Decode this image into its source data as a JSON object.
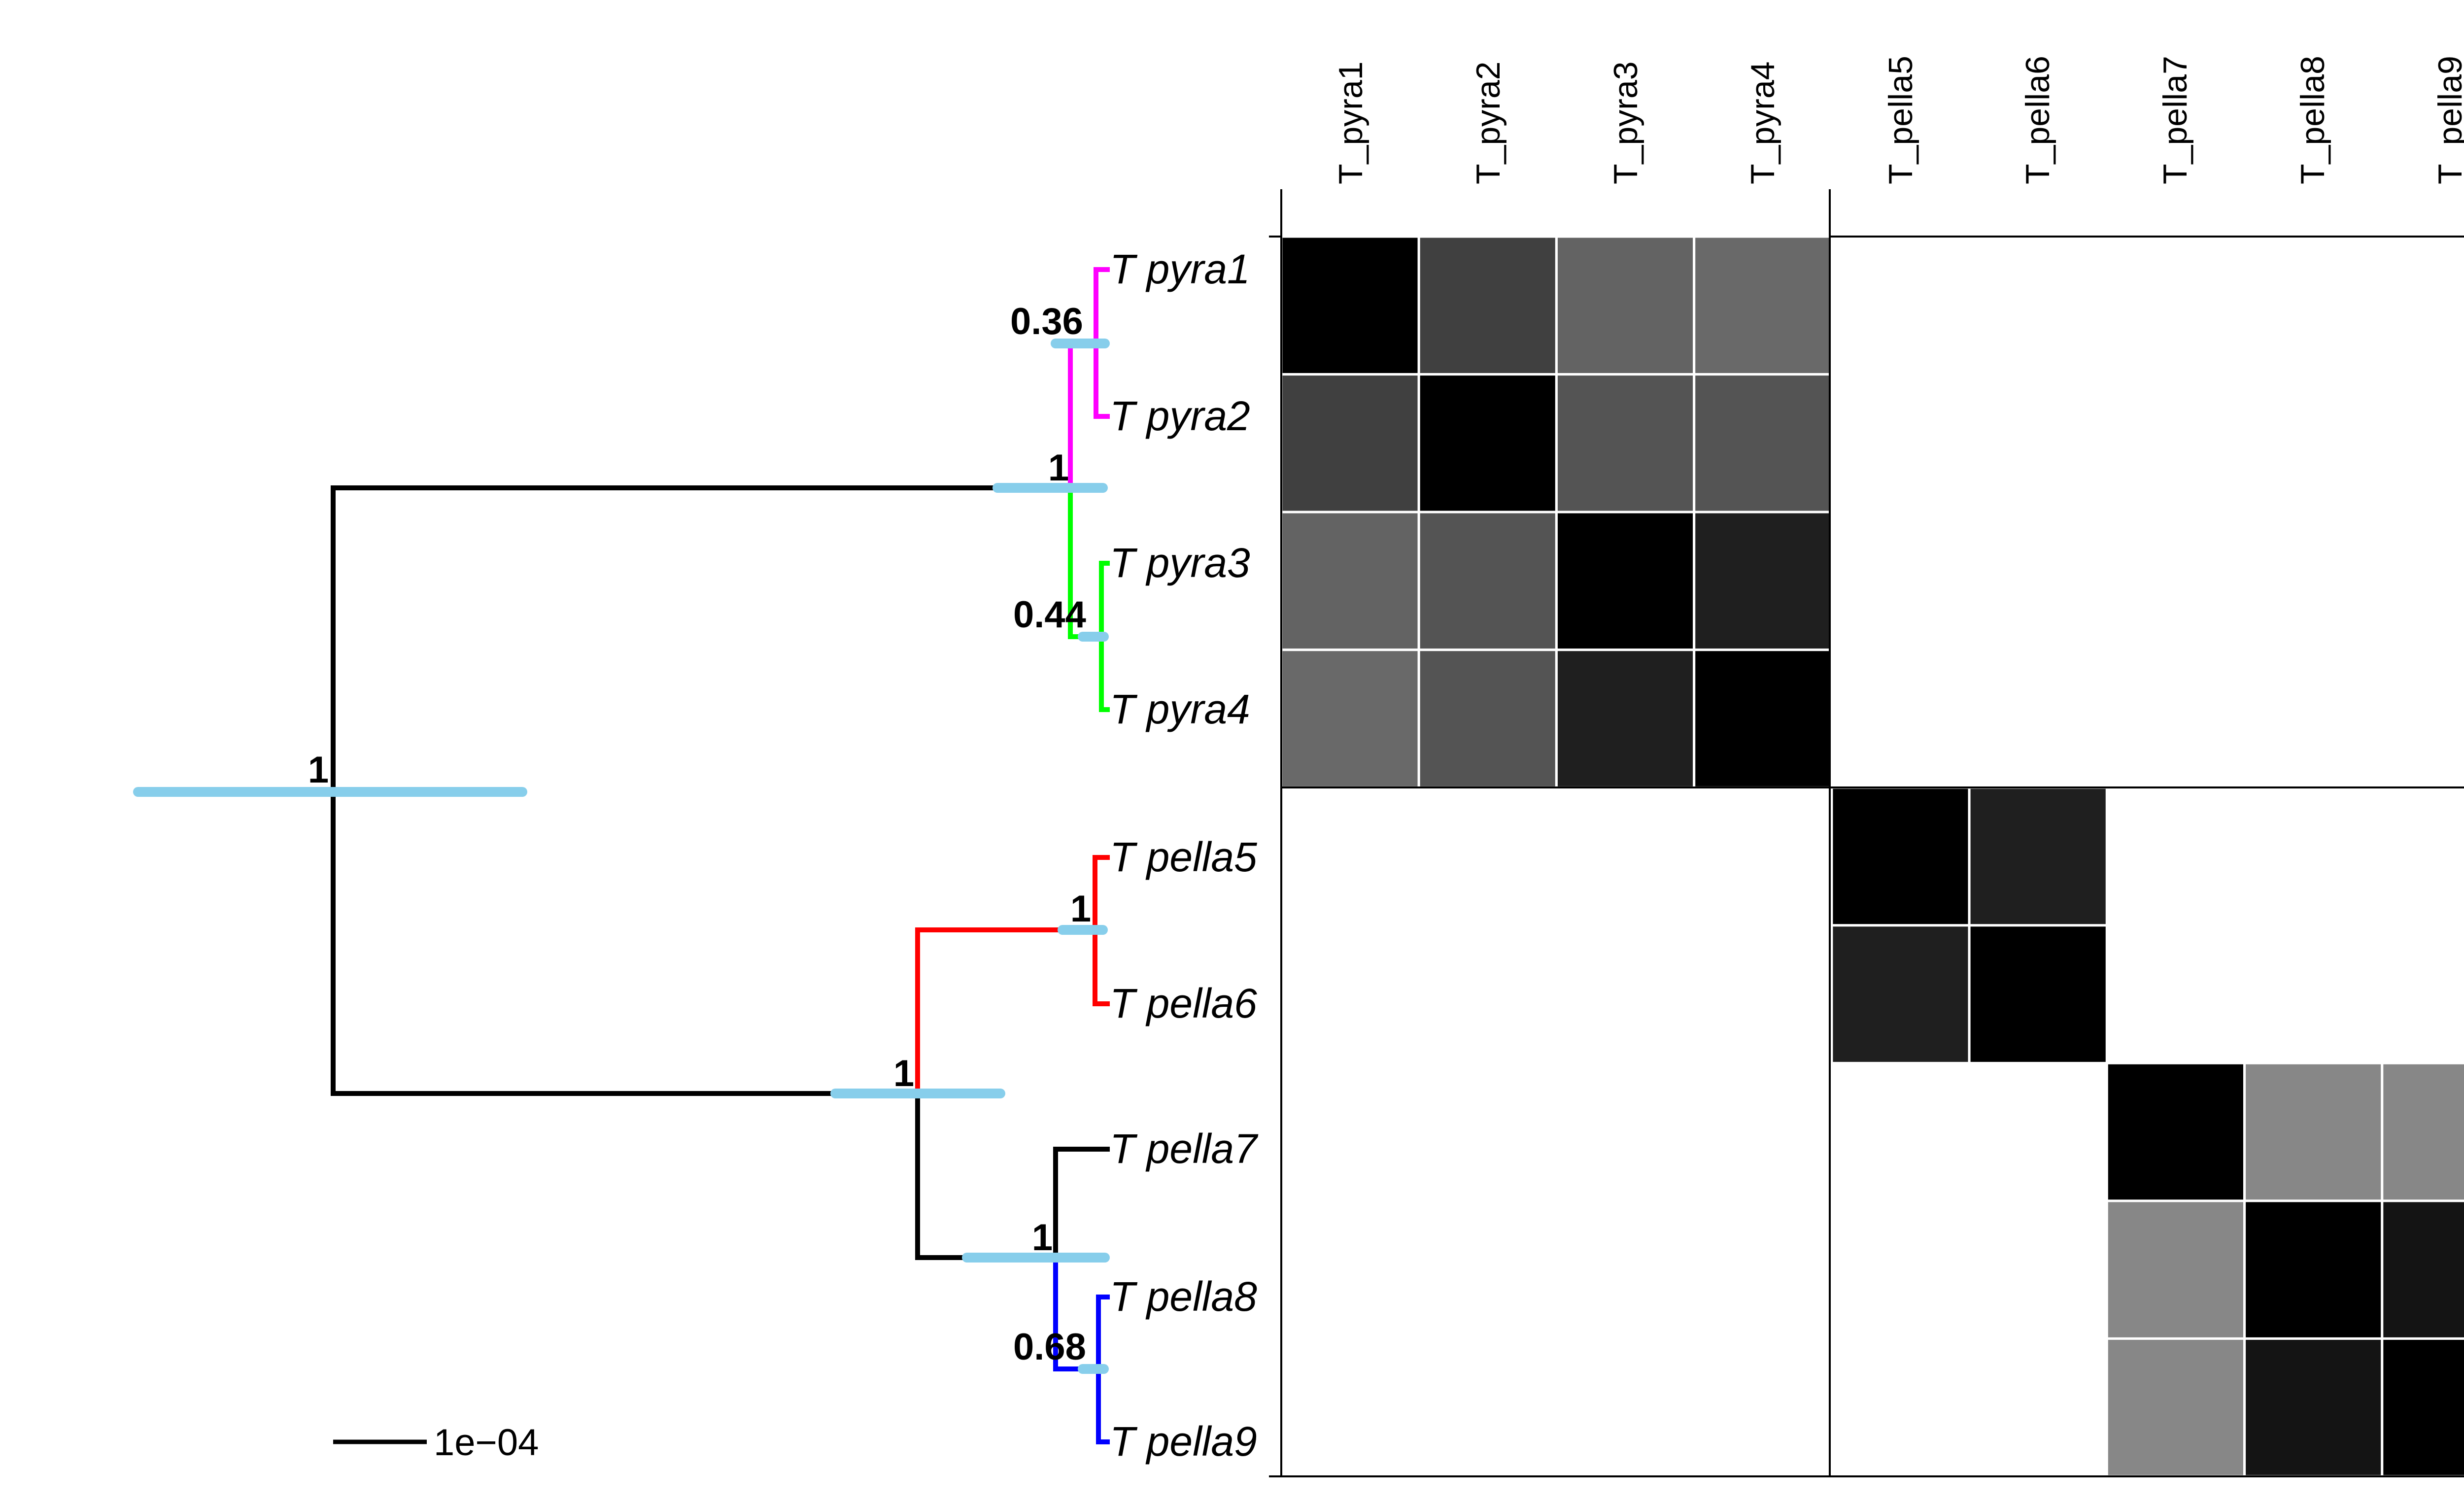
{
  "tree": {
    "tips": [
      {
        "id": "t1",
        "label": "T pyra1",
        "color": "#ff00ff"
      },
      {
        "id": "t2",
        "label": "T pyra2",
        "color": "#ff00ff"
      },
      {
        "id": "t3",
        "label": "T pyra3",
        "color": "#00ff00"
      },
      {
        "id": "t4",
        "label": "T pyra4",
        "color": "#00ff00"
      },
      {
        "id": "t5",
        "label": "T pella5",
        "color": "#ff0000"
      },
      {
        "id": "t6",
        "label": "T pella6",
        "color": "#ff0000"
      },
      {
        "id": "t7",
        "label": "T pella7",
        "color": "#000000"
      },
      {
        "id": "t8",
        "label": "T pella8",
        "color": "#0000ff"
      },
      {
        "id": "t9",
        "label": "T pella9",
        "color": "#0000ff"
      }
    ],
    "nodes": [
      {
        "id": "root",
        "support": "1"
      },
      {
        "id": "pyra",
        "support": "1"
      },
      {
        "id": "pyra12",
        "support": "0.36"
      },
      {
        "id": "pyra34",
        "support": "0.44"
      },
      {
        "id": "pella",
        "support": "1"
      },
      {
        "id": "pella56",
        "support": "1"
      },
      {
        "id": "pella789",
        "support": "1"
      },
      {
        "id": "pella89",
        "support": "0.68"
      }
    ],
    "scale_bar_label": "1e−04",
    "colors": {
      "interval_bar": "#87ceeb",
      "default_branch": "#000000"
    }
  },
  "matrix": {
    "column_labels": [
      "T_pyra1",
      "T_pyra2",
      "T_pyra3",
      "T_pyra4",
      "T_pella5",
      "T_pella6",
      "T_pella7",
      "T_pella8",
      "T_pella9"
    ],
    "values": [
      [
        1.0,
        0.75,
        0.61,
        0.59,
        0,
        0,
        0,
        0,
        0
      ],
      [
        0.75,
        1.0,
        0.67,
        0.67,
        0,
        0,
        0,
        0,
        0
      ],
      [
        0.61,
        0.67,
        1.0,
        0.88,
        0,
        0,
        0,
        0,
        0
      ],
      [
        0.59,
        0.67,
        0.88,
        1.0,
        0,
        0,
        0,
        0,
        0
      ],
      [
        0,
        0,
        0,
        0,
        1.0,
        0.88,
        0,
        0,
        0
      ],
      [
        0,
        0,
        0,
        0,
        0.88,
        1.0,
        0,
        0,
        0
      ],
      [
        0,
        0,
        0,
        0,
        0,
        0,
        1.0,
        0.47,
        0.47
      ],
      [
        0,
        0,
        0,
        0,
        0,
        0,
        0.47,
        1.0,
        0.92
      ],
      [
        0,
        0,
        0,
        0,
        0,
        0,
        0.47,
        0.92,
        1.0
      ]
    ],
    "value_range": [
      0,
      1
    ]
  }
}
